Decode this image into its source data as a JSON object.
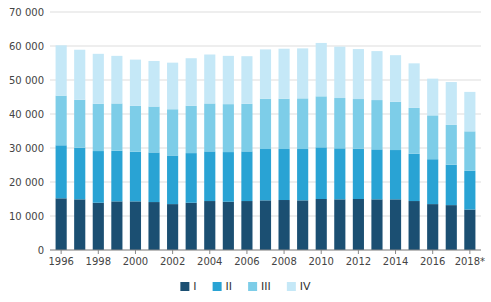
{
  "chart_data": {
    "type": "bar",
    "stacked": true,
    "grid": true,
    "legend": "bottom",
    "categories": [
      "1996",
      null,
      "1998",
      null,
      "2000",
      null,
      "2002",
      null,
      "2004",
      null,
      "2006",
      null,
      "2008",
      null,
      "2010",
      null,
      "2012",
      null,
      "2014",
      null,
      "2016",
      null,
      "2018*"
    ],
    "series": [
      {
        "name": "I",
        "color": "#1b4f72",
        "values": [
          15200,
          14900,
          13900,
          14300,
          14300,
          14100,
          13500,
          13900,
          14400,
          14200,
          14400,
          14600,
          14700,
          14600,
          15000,
          14900,
          15000,
          14900,
          14900,
          14400,
          13500,
          13200,
          11900
        ]
      },
      {
        "name": "II",
        "color": "#29a3d4",
        "values": [
          15600,
          15200,
          15200,
          14900,
          14600,
          14600,
          14300,
          14600,
          14600,
          14600,
          14600,
          15100,
          15000,
          15100,
          15200,
          15000,
          14800,
          14700,
          14500,
          13900,
          13200,
          11900,
          11400
        ]
      },
      {
        "name": "III",
        "color": "#7dcde8",
        "values": [
          14600,
          14100,
          13900,
          13900,
          13500,
          13500,
          13600,
          13900,
          14100,
          14100,
          14000,
          14800,
          14800,
          14900,
          15000,
          14800,
          14600,
          14500,
          14200,
          13500,
          12900,
          11700,
          11600
        ]
      },
      {
        "name": "IV",
        "color": "#c5e8f7",
        "values": [
          14800,
          14700,
          14700,
          14000,
          13600,
          13400,
          13700,
          14000,
          14400,
          14200,
          14000,
          14500,
          14700,
          14700,
          15700,
          15100,
          14700,
          14400,
          13700,
          13100,
          10800,
          12600,
          11600
        ]
      }
    ],
    "ylim": [
      0,
      70000
    ],
    "yticks": [
      0,
      {
        "value": 10000,
        "label": "10 000"
      },
      {
        "value": 20000,
        "label": "20 000"
      },
      {
        "value": 30000,
        "label": "30 000"
      },
      {
        "value": 40000,
        "label": "40 000"
      },
      {
        "value": 50000,
        "label": "50 000"
      },
      {
        "value": 60000,
        "label": "60 000"
      },
      {
        "value": 70000,
        "label": "70 000"
      }
    ]
  }
}
